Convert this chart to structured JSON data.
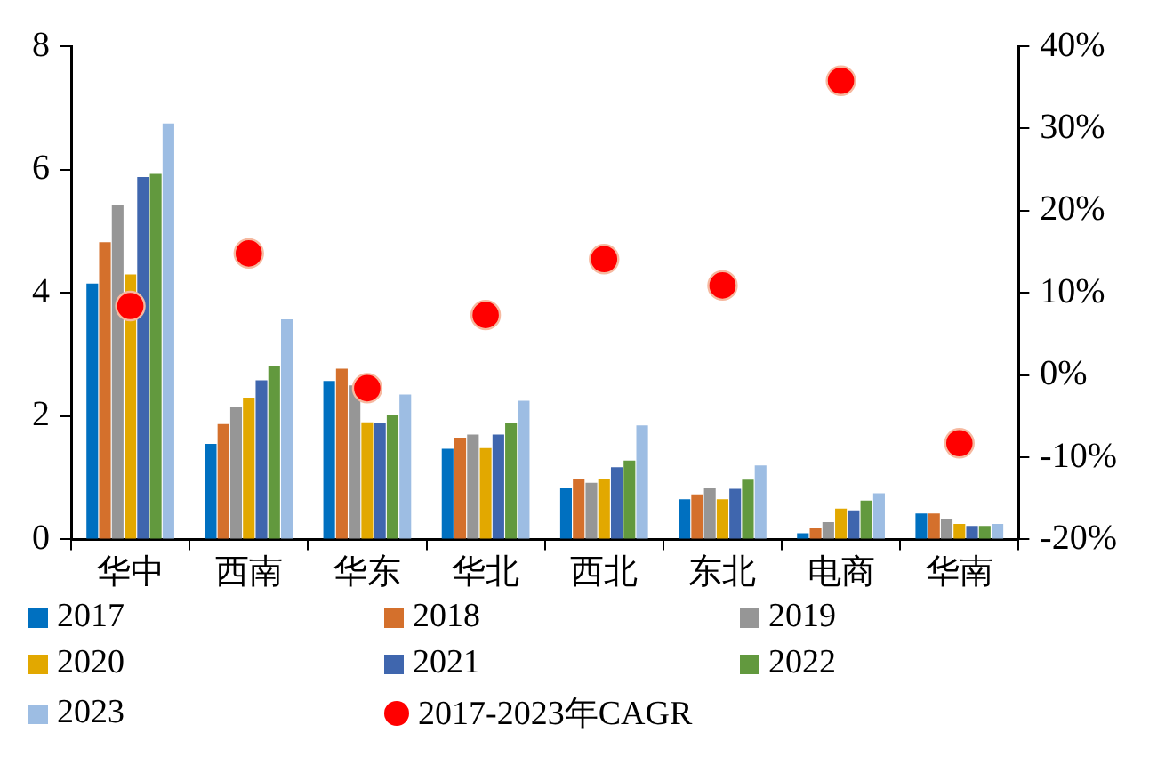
{
  "chart_data": {
    "type": "bar",
    "categories": [
      "华中",
      "西南",
      "华东",
      "华北",
      "西北",
      "东北",
      "电商",
      "华南"
    ],
    "series": [
      {
        "name": "2017",
        "color": "#0070c0",
        "values": [
          4.15,
          1.55,
          2.57,
          1.47,
          0.83,
          0.65,
          0.1,
          0.42
        ]
      },
      {
        "name": "2018",
        "color": "#d4702c",
        "values": [
          4.82,
          1.87,
          2.77,
          1.65,
          0.98,
          0.73,
          0.18,
          0.42
        ]
      },
      {
        "name": "2019",
        "color": "#969696",
        "values": [
          5.42,
          2.15,
          2.5,
          1.7,
          0.92,
          0.83,
          0.28,
          0.33
        ]
      },
      {
        "name": "2020",
        "color": "#e2a800",
        "values": [
          4.3,
          2.3,
          1.9,
          1.48,
          0.98,
          0.65,
          0.5,
          0.25
        ]
      },
      {
        "name": "2021",
        "color": "#3f66ae",
        "values": [
          5.88,
          2.58,
          1.88,
          1.7,
          1.17,
          0.82,
          0.47,
          0.22
        ]
      },
      {
        "name": "2022",
        "color": "#62993e",
        "values": [
          5.93,
          2.82,
          2.02,
          1.88,
          1.28,
          0.97,
          0.63,
          0.22
        ]
      },
      {
        "name": "2023",
        "color": "#9dbde3",
        "values": [
          6.75,
          3.57,
          2.35,
          2.25,
          1.85,
          1.2,
          0.75,
          0.25
        ]
      },
      {
        "name": "2017-2023年CAGR",
        "color": "#ff0000",
        "type": "scatter",
        "axis": "y2",
        "marker": "circle",
        "values": [
          8.4,
          14.8,
          -1.6,
          7.3,
          14.1,
          10.9,
          35.8,
          -8.3
        ]
      }
    ],
    "ylim": [
      0,
      8
    ],
    "yticks": [
      0,
      2,
      4,
      6,
      8
    ],
    "y2lim": [
      -20,
      40
    ],
    "y2ticks": [
      {
        "value": -20,
        "label": "-20%"
      },
      {
        "value": -10,
        "label": "-10%"
      },
      {
        "value": 0,
        "label": "0%"
      },
      {
        "value": 10,
        "label": "10%"
      },
      {
        "value": 20,
        "label": "20%"
      },
      {
        "value": 30,
        "label": "30%"
      },
      {
        "value": 40,
        "label": "40%"
      }
    ],
    "grid": false,
    "legend": "bottom"
  }
}
